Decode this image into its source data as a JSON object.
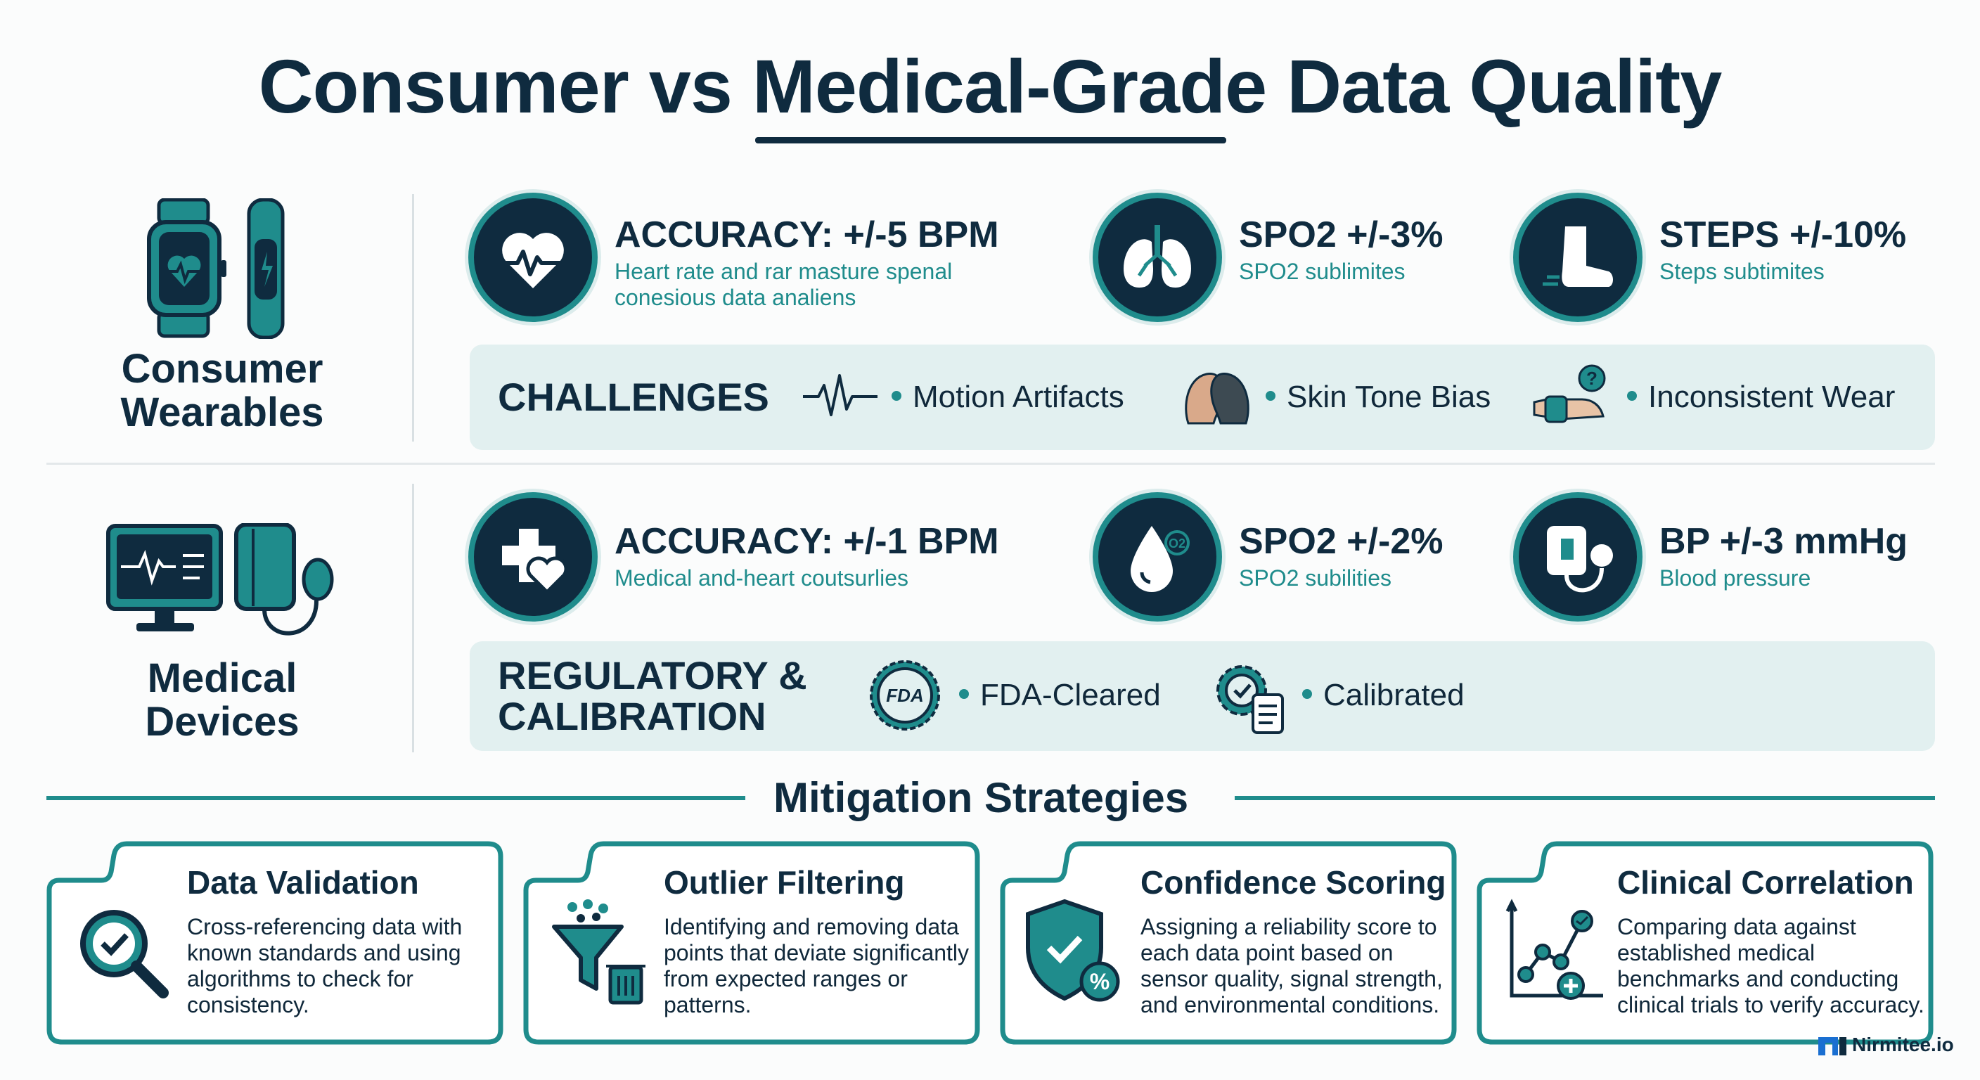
{
  "title": "Consumer vs Medical-Grade Data Quality",
  "consumer": {
    "label": "Consumer Wearables",
    "metrics": [
      {
        "title": "ACCURACY: +/-5 BPM",
        "subtitle": "Heart rate and rar masture spenal conesious data analiens",
        "icon": "heart-ecg-icon"
      },
      {
        "title": "SPO2 +/-3%",
        "subtitle": "SPO2 sublimites",
        "icon": "lungs-icon"
      },
      {
        "title": "STEPS +/-10%",
        "subtitle": "Steps subtimites",
        "icon": "foot-icon"
      }
    ],
    "panel": {
      "title": "CHALLENGES",
      "items": [
        {
          "label": "Motion Artifacts",
          "icon": "pulse-wave-icon"
        },
        {
          "label": "Skin Tone Bias",
          "icon": "faces-icon"
        },
        {
          "label": "Inconsistent Wear",
          "icon": "wrist-question-icon"
        }
      ]
    }
  },
  "medical": {
    "label": "Medical Devices",
    "metrics": [
      {
        "title": "ACCURACY: +/-1 BPM",
        "subtitle": "Medical and-heart coutsurlies",
        "icon": "medical-cross-heart-icon"
      },
      {
        "title": "SPO2 +/-2%",
        "subtitle": "SPO2 subilities",
        "icon": "oxygen-drop-icon"
      },
      {
        "title": "BP +/-3 mmHg",
        "subtitle": "Blood pressure",
        "icon": "bp-cuff-icon"
      }
    ],
    "panel": {
      "title": "REGULATORY & CALIBRATION",
      "items": [
        {
          "label": "FDA-Cleared",
          "icon": "fda-seal-icon"
        },
        {
          "label": "Calibrated",
          "icon": "gear-clipboard-icon"
        }
      ]
    }
  },
  "mitigation": {
    "title": "Mitigation Strategies",
    "cards": [
      {
        "title": "Data Validation",
        "text": "Cross-referencing data with known standards and using algorithms to check for consistency.",
        "icon": "magnifier-check-icon"
      },
      {
        "title": "Outlier Filtering",
        "text": "Identifying and removing data points that deviate significantly from expected ranges or patterns.",
        "icon": "funnel-trash-icon"
      },
      {
        "title": "Confidence Scoring",
        "text": "Assigning a reliability score to each data point based on sensor quality, signal strength, and environmental conditions.",
        "icon": "shield-percent-icon"
      },
      {
        "title": "Clinical Correlation",
        "text": "Comparing data against established medical benchmarks and conducting clinical trials to verify accuracy.",
        "icon": "chart-plus-icon"
      }
    ]
  },
  "brand": "Nirmitee.io",
  "colors": {
    "navy": "#0f2b3f",
    "teal": "#1f8c8c",
    "panel": "#e2f0f0"
  }
}
